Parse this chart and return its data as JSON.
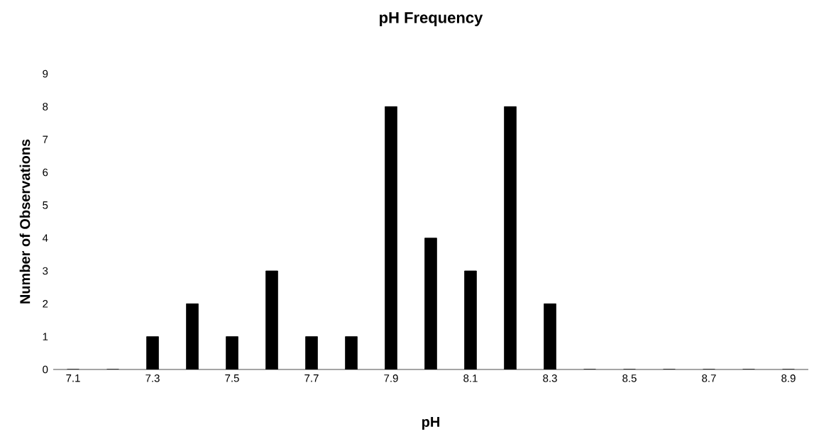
{
  "chart_data": {
    "type": "bar",
    "title": "pH Frequency",
    "xlabel": "pH",
    "ylabel": "Number of Observations",
    "categories": [
      "7.1",
      null,
      "7.3",
      null,
      "7.5",
      null,
      "7.7",
      null,
      "7.9",
      null,
      "8.1",
      null,
      "8.3",
      null,
      "8.5",
      null,
      "8.7",
      null,
      "8.9"
    ],
    "values": [
      0,
      0,
      1,
      2,
      1,
      3,
      1,
      1,
      8,
      4,
      3,
      8,
      2,
      0,
      0,
      0,
      0,
      0,
      0
    ],
    "color": "#000000",
    "ylim": [
      0,
      9
    ],
    "yticks": [
      0,
      1,
      2,
      3,
      4,
      5,
      6,
      7,
      8,
      9
    ]
  }
}
